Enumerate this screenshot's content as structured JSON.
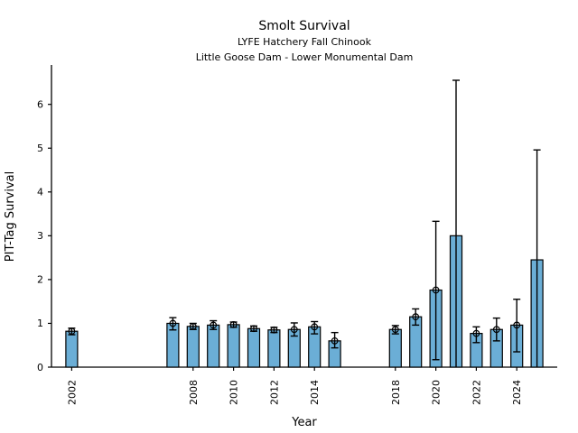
{
  "chart_data": {
    "type": "bar",
    "title": "Smolt Survival",
    "subtitle1": "LYFE Hatchery Fall Chinook",
    "subtitle2": "Little Goose Dam - Lower Monumental Dam",
    "xlabel": "Year",
    "ylabel": "PIT-Tag Survival",
    "xlim": [
      2001,
      2026
    ],
    "ylim": [
      0,
      6.9
    ],
    "xticks": [
      2002,
      2008,
      2010,
      2012,
      2014,
      2018,
      2020,
      2022,
      2024
    ],
    "yticks": [
      0,
      1,
      2,
      3,
      4,
      5,
      6
    ],
    "grid": false,
    "legend": null,
    "bar_color": "#6baed6",
    "edge_color": "#000000",
    "marker_style": "open-circle",
    "series": [
      {
        "name": "PIT-Tag Survival",
        "points": [
          {
            "year": 2002,
            "value": 0.82,
            "ci_low": 0.74,
            "ci_high": 0.89,
            "marker": true
          },
          {
            "year": 2007,
            "value": 1.0,
            "ci_low": 0.85,
            "ci_high": 1.13,
            "marker": true
          },
          {
            "year": 2008,
            "value": 0.93,
            "ci_low": 0.86,
            "ci_high": 1.0,
            "marker": true
          },
          {
            "year": 2009,
            "value": 0.96,
            "ci_low": 0.86,
            "ci_high": 1.06,
            "marker": true
          },
          {
            "year": 2010,
            "value": 0.97,
            "ci_low": 0.91,
            "ci_high": 1.03,
            "marker": true
          },
          {
            "year": 2011,
            "value": 0.88,
            "ci_low": 0.82,
            "ci_high": 0.94,
            "marker": true
          },
          {
            "year": 2012,
            "value": 0.85,
            "ci_low": 0.79,
            "ci_high": 0.91,
            "marker": true
          },
          {
            "year": 2013,
            "value": 0.86,
            "ci_low": 0.71,
            "ci_high": 1.01,
            "marker": true
          },
          {
            "year": 2014,
            "value": 0.92,
            "ci_low": 0.76,
            "ci_high": 1.04,
            "marker": true
          },
          {
            "year": 2015,
            "value": 0.6,
            "ci_low": 0.44,
            "ci_high": 0.79,
            "marker": true
          },
          {
            "year": 2018,
            "value": 0.86,
            "ci_low": 0.76,
            "ci_high": 0.95,
            "marker": true
          },
          {
            "year": 2019,
            "value": 1.15,
            "ci_low": 0.96,
            "ci_high": 1.33,
            "marker": true
          },
          {
            "year": 2020,
            "value": 1.76,
            "ci_low": 0.17,
            "ci_high": 3.33,
            "marker": true
          },
          {
            "year": 2021,
            "value": 3.0,
            "ci_low": 0.0,
            "ci_high": 6.55,
            "marker": false
          },
          {
            "year": 2022,
            "value": 0.77,
            "ci_low": 0.56,
            "ci_high": 0.92,
            "marker": true
          },
          {
            "year": 2023,
            "value": 0.86,
            "ci_low": 0.6,
            "ci_high": 1.12,
            "marker": true
          },
          {
            "year": 2024,
            "value": 0.96,
            "ci_low": 0.35,
            "ci_high": 1.55,
            "marker": true
          },
          {
            "year": 2025,
            "value": 2.45,
            "ci_low": 0.0,
            "ci_high": 4.96,
            "marker": false
          }
        ]
      }
    ]
  }
}
